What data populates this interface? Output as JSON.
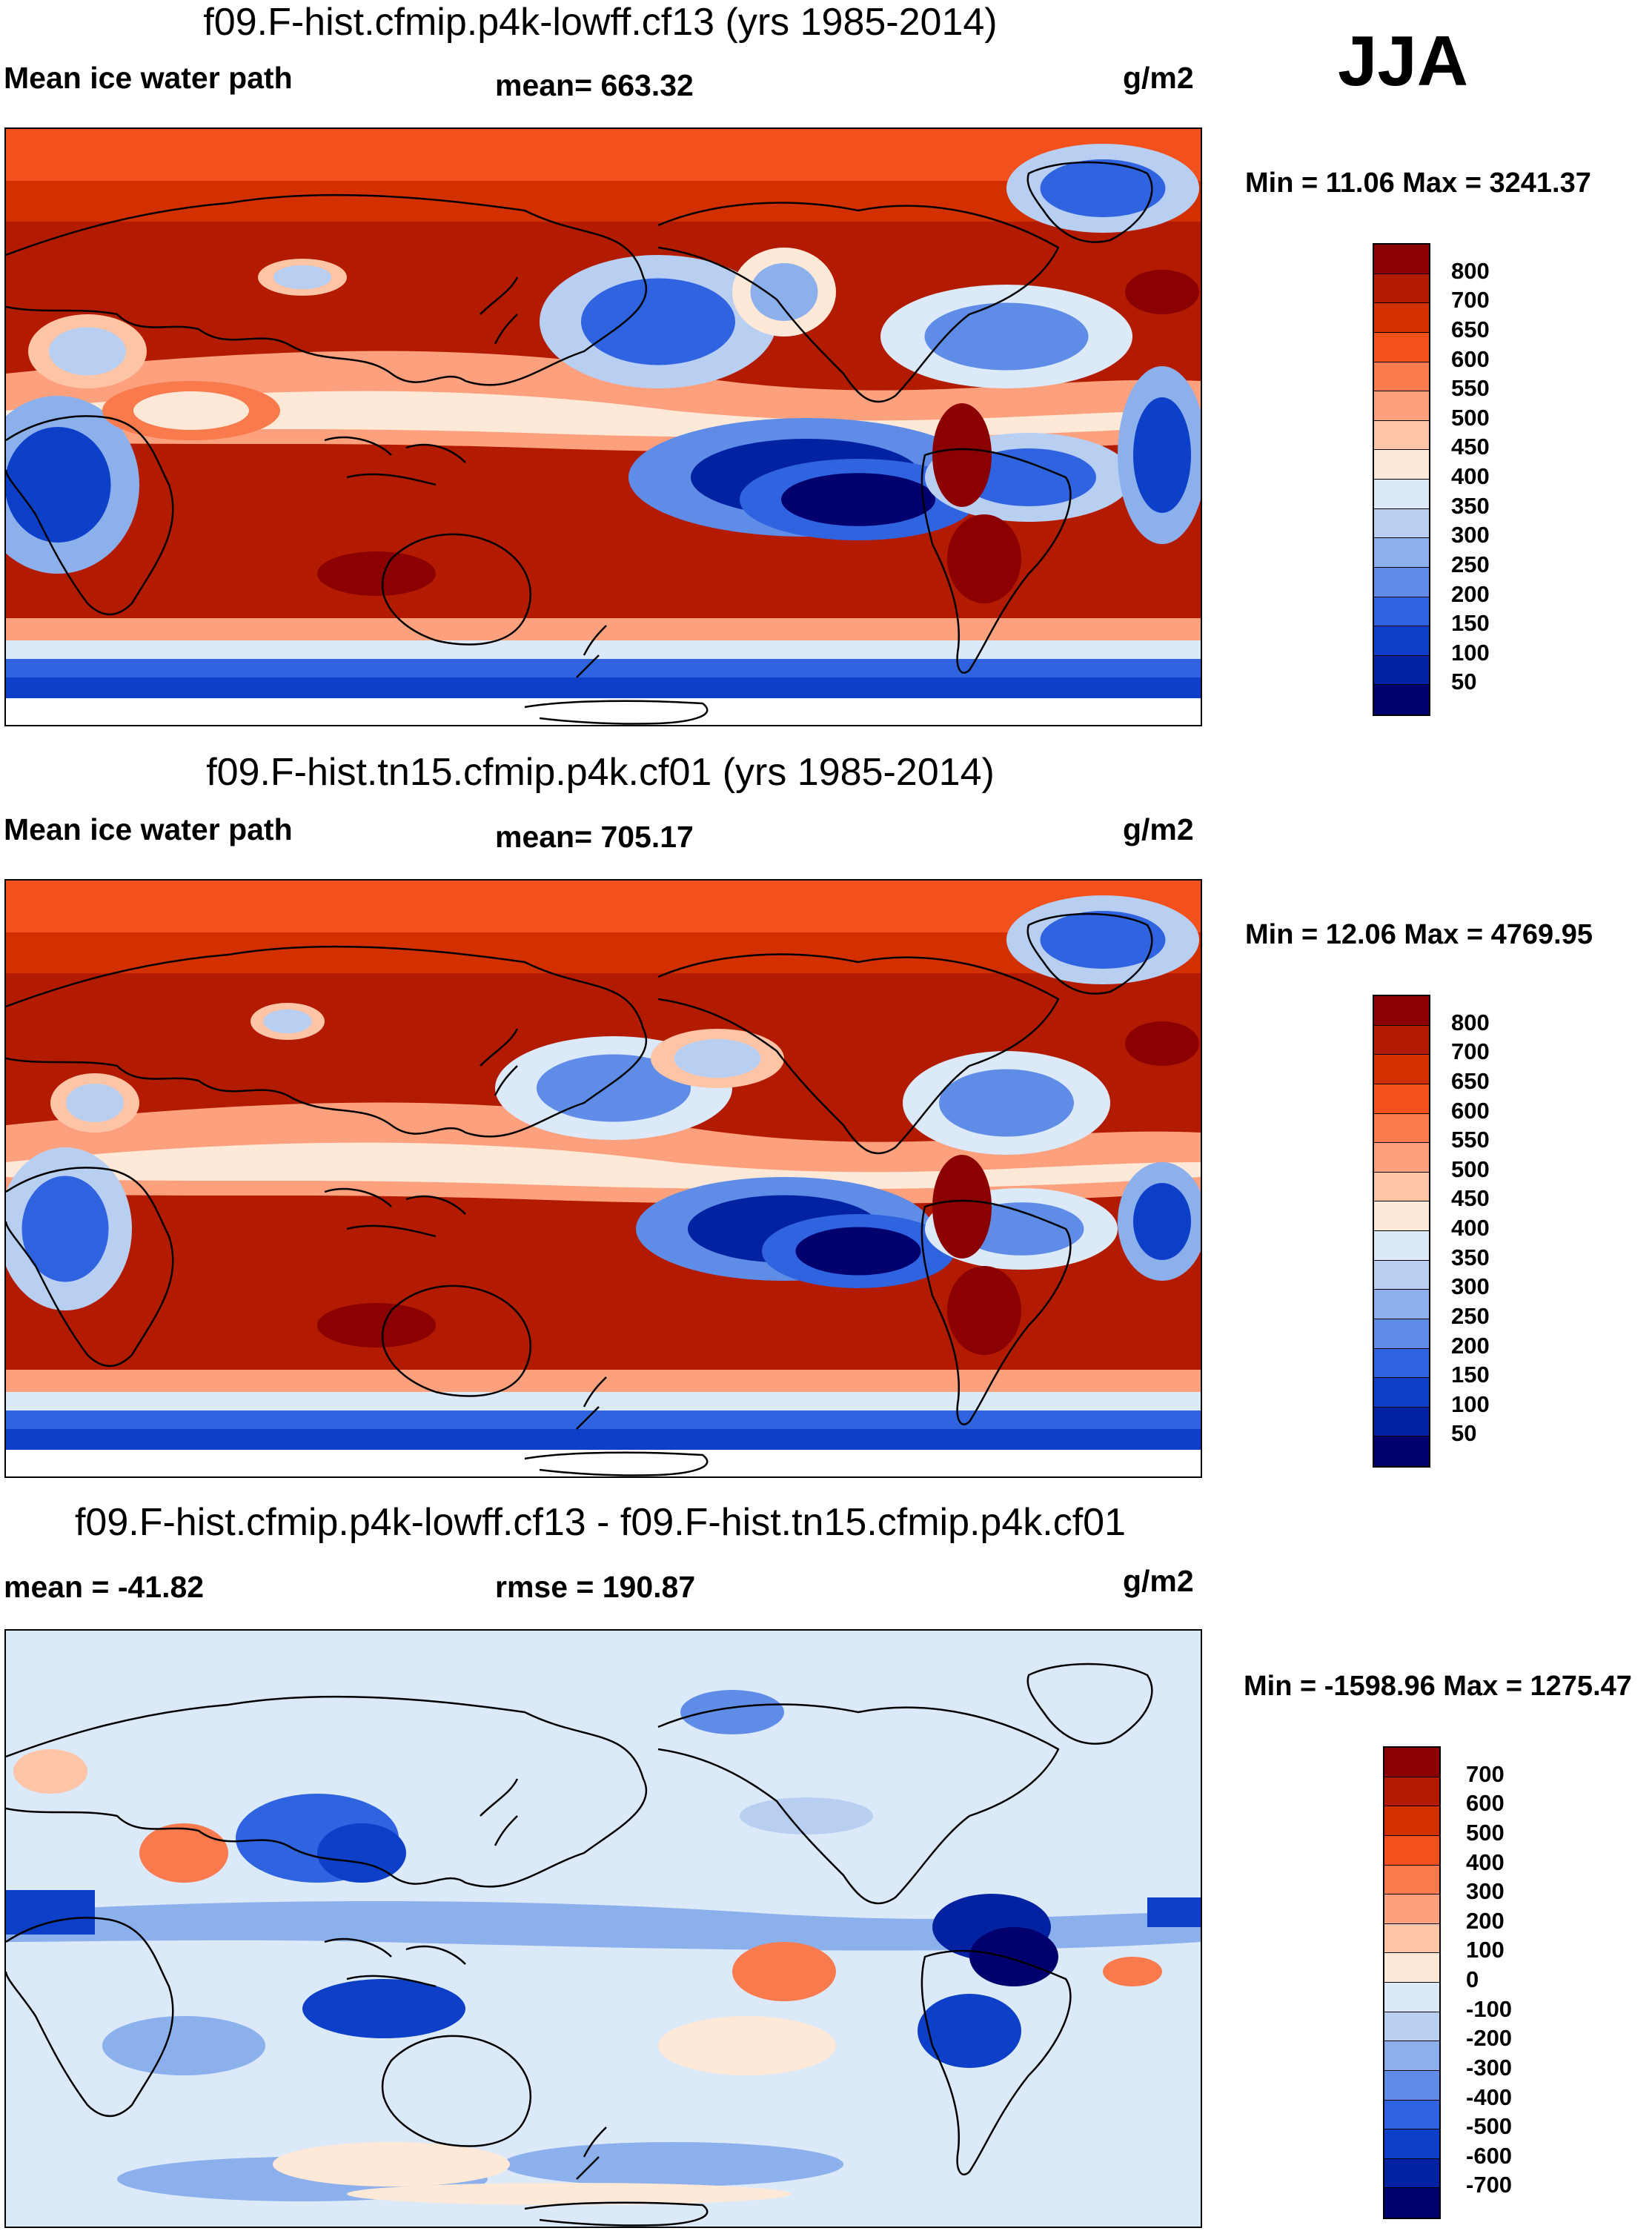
{
  "season": "JJA",
  "panels": [
    {
      "id": "p1",
      "title": "f09.F-hist.cfmip.p4k-lowff.cf13 (yrs 1985-2014)",
      "left_label": "Mean ice water path",
      "center_label": "mean= 663.32",
      "units": "g/m2",
      "minmax": "Min =  11.06 Max = 3241.37",
      "colorbar_labels": [
        "800",
        "700",
        "650",
        "600",
        "550",
        "500",
        "450",
        "400",
        "350",
        "300",
        "250",
        "200",
        "150",
        "100",
        "50"
      ],
      "colorbar_colors": [
        "#8b0000",
        "#b31b00",
        "#d33000",
        "#f2501d",
        "#f87a4d",
        "#fca07e",
        "#fec4a6",
        "#fee8d8",
        "#dbe9f8",
        "#b8cff2",
        "#8cb0ec",
        "#5e8ce6",
        "#2f63e0",
        "#0d3fc8",
        "#0322a2",
        "#02006e"
      ],
      "map_style": "mean"
    },
    {
      "id": "p2",
      "title": "f09.F-hist.tn15.cfmip.p4k.cf01 (yrs 1985-2014)",
      "left_label": "Mean ice water path",
      "center_label": "mean= 705.17",
      "units": "g/m2",
      "minmax": "Min =  12.06 Max = 4769.95",
      "colorbar_labels": [
        "800",
        "700",
        "650",
        "600",
        "550",
        "500",
        "450",
        "400",
        "350",
        "300",
        "250",
        "200",
        "150",
        "100",
        "50"
      ],
      "colorbar_colors": [
        "#8b0000",
        "#b31b00",
        "#d33000",
        "#f2501d",
        "#f87a4d",
        "#fca07e",
        "#fec4a6",
        "#fee8d8",
        "#dbe9f8",
        "#b8cff2",
        "#8cb0ec",
        "#5e8ce6",
        "#2f63e0",
        "#0d3fc8",
        "#0322a2",
        "#02006e"
      ],
      "map_style": "mean2"
    },
    {
      "id": "p3",
      "title": "f09.F-hist.cfmip.p4k-lowff.cf13 - f09.F-hist.tn15.cfmip.p4k.cf01",
      "left_label": "mean = -41.82",
      "center_label": "rmse = 190.87",
      "units": "g/m2",
      "minmax": "Min = -1598.96 Max = 1275.47",
      "colorbar_labels": [
        "700",
        "600",
        "500",
        "400",
        "300",
        "200",
        "100",
        "0",
        "-100",
        "-200",
        "-300",
        "-400",
        "-500",
        "-600",
        "-700"
      ],
      "colorbar_colors": [
        "#8b0000",
        "#b31b00",
        "#d33000",
        "#f2501d",
        "#f87a4d",
        "#fca07e",
        "#fec4a6",
        "#fee8d8",
        "#dbe9f8",
        "#b8cff2",
        "#8cb0ec",
        "#5e8ce6",
        "#2f63e0",
        "#0d3fc8",
        "#0322a2",
        "#02006e"
      ],
      "map_style": "diff"
    }
  ],
  "chart_data": {
    "type": "heatmap",
    "title": "Mean ice water path (JJA)",
    "units": "g/m2",
    "panels": [
      {
        "name": "f09.F-hist.cfmip.p4k-lowff.cf13 (yrs 1985-2014)",
        "mean": 663.32,
        "min": 11.06,
        "max": 3241.37,
        "levels": [
          50,
          100,
          150,
          200,
          250,
          300,
          350,
          400,
          450,
          500,
          550,
          600,
          650,
          700,
          800
        ]
      },
      {
        "name": "f09.F-hist.tn15.cfmip.p4k.cf01 (yrs 1985-2014)",
        "mean": 705.17,
        "min": 12.06,
        "max": 4769.95,
        "levels": [
          50,
          100,
          150,
          200,
          250,
          300,
          350,
          400,
          450,
          500,
          550,
          600,
          650,
          700,
          800
        ]
      },
      {
        "name": "f09.F-hist.cfmip.p4k-lowff.cf13 - f09.F-hist.tn15.cfmip.p4k.cf01",
        "mean": -41.82,
        "rmse": 190.87,
        "min": -1598.96,
        "max": 1275.47,
        "levels": [
          -700,
          -600,
          -500,
          -400,
          -300,
          -200,
          -100,
          0,
          100,
          200,
          300,
          400,
          500,
          600,
          700
        ]
      }
    ]
  }
}
